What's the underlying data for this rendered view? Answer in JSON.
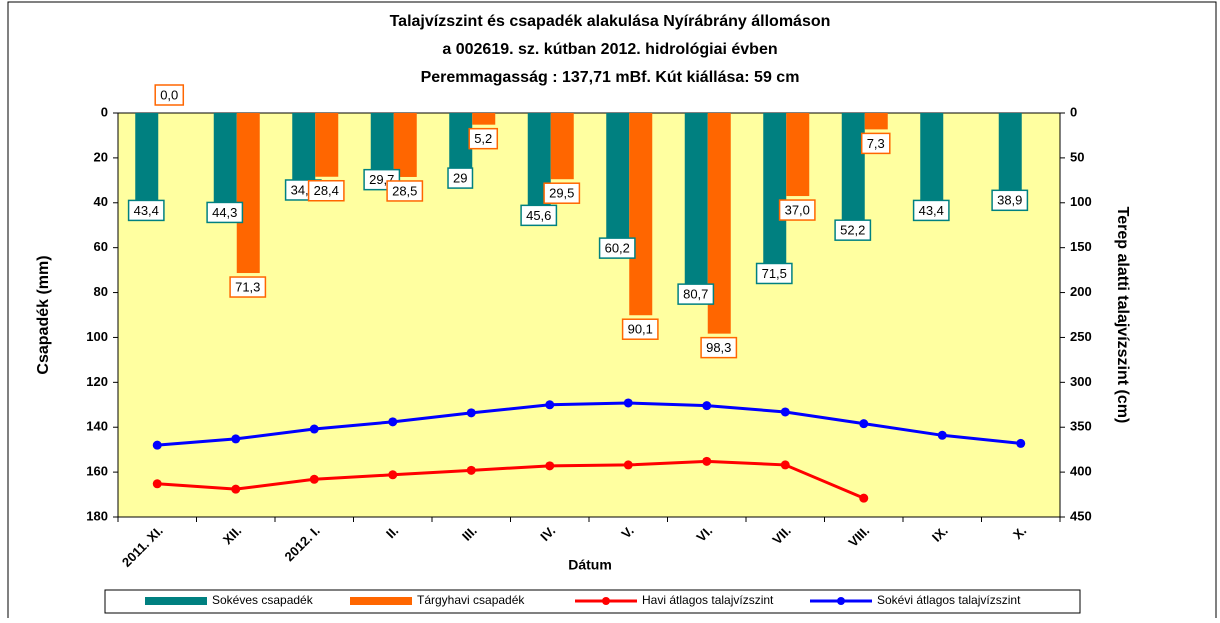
{
  "chart_data": {
    "type": "bar",
    "title": [
      "Talajvízszint és csapadék alakulása Nyírábrány állomáson",
      "a  002619. sz. kútban 2012. hidrológiai évben",
      "Peremmagasság : 137,71 mBf.  Kút kiállása: 59 cm"
    ],
    "x_label": "Dátum",
    "y_label": "Csapadék (mm)",
    "y2_label": "Terep alatti talajvízszint (cm)",
    "categories": [
      "2011. XI.",
      "XII.",
      "2012. I.",
      "II.",
      "III.",
      "IV.",
      "V.",
      "VI.",
      "VII.",
      "VIII.",
      "IX.",
      "X."
    ],
    "ylim": [
      0,
      180
    ],
    "yticks": [
      0,
      20,
      40,
      60,
      80,
      100,
      120,
      140,
      160,
      180
    ],
    "y_inverted": true,
    "y2lim": [
      0,
      450
    ],
    "y2ticks": [
      0,
      50,
      100,
      150,
      200,
      250,
      300,
      350,
      400,
      450
    ],
    "y2_inverted": true,
    "background": "#ffffa0",
    "series": [
      {
        "name": "Sokéves csapadék",
        "type": "bar",
        "color": "#008080",
        "values": [
          43.4,
          44.3,
          34.3,
          29.7,
          29,
          45.6,
          60.2,
          80.7,
          71.5,
          52.2,
          43.4,
          38.9
        ],
        "value_labels": [
          "43,4",
          "44,3",
          "34,3",
          "29,7",
          "29",
          "45,6",
          "60,2",
          "80,7",
          "71,5",
          "52,2",
          "43,4",
          "38,9"
        ]
      },
      {
        "name": "Tárgyhavi csapadék",
        "type": "bar",
        "color": "#ff6600",
        "values": [
          0.0,
          71.3,
          28.4,
          28.5,
          5.2,
          29.5,
          90.1,
          98.3,
          37.0,
          7.3,
          null,
          null
        ],
        "value_labels": [
          "0,0",
          "71,3",
          "28,4",
          "28,5",
          "5,2",
          "29,5",
          "90,1",
          "98,3",
          "37,0",
          "7,3",
          null,
          null
        ]
      },
      {
        "name": "Havi átlagos talajvízszint",
        "type": "line",
        "axis": "y2",
        "color": "#ff0000",
        "values": [
          413,
          419,
          408,
          403,
          398,
          393,
          392,
          388,
          392,
          429,
          null,
          null
        ]
      },
      {
        "name": "Sokévi átlagos talajvízszint",
        "type": "line",
        "axis": "y2",
        "color": "#0000ff",
        "values": [
          370,
          363,
          352,
          344,
          334,
          325,
          323,
          326,
          333,
          346,
          359,
          368
        ]
      }
    ]
  }
}
